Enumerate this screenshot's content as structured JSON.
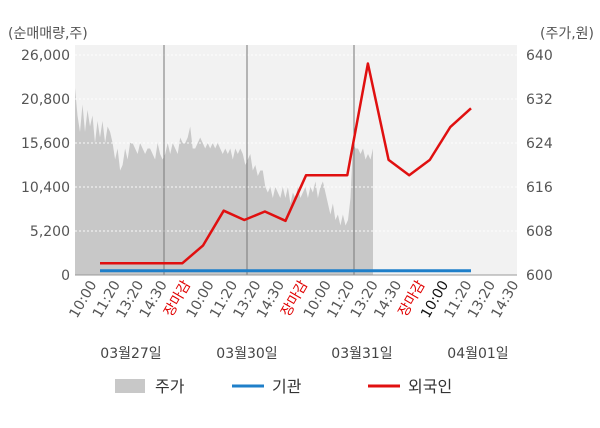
{
  "chart_data": {
    "type": "line",
    "left_axis_unit": "(순매매량,주)",
    "right_axis_unit": "(주가,원)",
    "left_ticks": [
      "0",
      "5,200",
      "10,400",
      "15,600",
      "20,800",
      "26,000"
    ],
    "right_ticks": [
      "600",
      "608",
      "616",
      "624",
      "632",
      "640"
    ],
    "ylim_left": [
      0,
      26000
    ],
    "ylim_right": [
      600,
      640
    ],
    "time_labels": [
      {
        "text": "10:00",
        "color": "#555555"
      },
      {
        "text": "11:20",
        "color": "#555555"
      },
      {
        "text": "13:20",
        "color": "#555555"
      },
      {
        "text": "14:30",
        "color": "#555555"
      },
      {
        "text": "장마감",
        "color": "#e00000"
      },
      {
        "text": "10:00",
        "color": "#555555"
      },
      {
        "text": "11:20",
        "color": "#555555"
      },
      {
        "text": "13:20",
        "color": "#555555"
      },
      {
        "text": "14:30",
        "color": "#555555"
      },
      {
        "text": "장마감",
        "color": "#e00000"
      },
      {
        "text": "10:00",
        "color": "#555555"
      },
      {
        "text": "11:20",
        "color": "#555555"
      },
      {
        "text": "13:20",
        "color": "#555555"
      },
      {
        "text": "14:30",
        "color": "#555555"
      },
      {
        "text": "장마감",
        "color": "#e00000"
      },
      {
        "text": "10:00",
        "color": "#111111"
      },
      {
        "text": "11:20",
        "color": "#555555"
      },
      {
        "text": "13:20",
        "color": "#555555"
      },
      {
        "text": "14:30",
        "color": "#555555"
      }
    ],
    "dates": [
      "03월27일",
      "03월30일",
      "03월31일",
      "04월01일"
    ],
    "legend": [
      {
        "name": "주가",
        "color": "#c8c8c8",
        "kind": "area"
      },
      {
        "name": "기관",
        "color": "#1f7fc9",
        "kind": "line"
      },
      {
        "name": "외국인",
        "color": "#e01010",
        "kind": "line"
      }
    ],
    "price_area": {
      "color": "#c8c8c8",
      "values": [
        634,
        629,
        626,
        631,
        626,
        630,
        627,
        629,
        624,
        628,
        625,
        628,
        624,
        627,
        626,
        624,
        621,
        623,
        619,
        620,
        623,
        621,
        624,
        624,
        623,
        622,
        624,
        623,
        622,
        623,
        623,
        622,
        621,
        624,
        622,
        621,
        622,
        624,
        622,
        624,
        623,
        622,
        625,
        624,
        624,
        625,
        627,
        623,
        623,
        624,
        625,
        624,
        623,
        624,
        623,
        624,
        623,
        624,
        623,
        622,
        623,
        622,
        623,
        621,
        623,
        622,
        623,
        622,
        620,
        621,
        622,
        619,
        620,
        618,
        619,
        619,
        616,
        615,
        616,
        614,
        616,
        615,
        614,
        616,
        614,
        616,
        613,
        615,
        614,
        616,
        614,
        615,
        616,
        614,
        616,
        615,
        617,
        614,
        616,
        617,
        615,
        613,
        611,
        613,
        610,
        611,
        609,
        611,
        609,
        610,
        614,
        624,
        623,
        623,
        622,
        623,
        621,
        622,
        621,
        623
      ]
    },
    "institution": {
      "color": "#1f7fc9",
      "values": [
        500,
        500,
        500,
        500,
        500,
        500,
        500,
        500,
        500,
        500,
        500,
        500,
        500,
        500,
        500,
        500,
        500,
        500,
        500,
        500,
        500,
        500,
        500
      ]
    },
    "foreign": {
      "color": "#e01010",
      "values": [
        1400,
        1400,
        1400,
        1400,
        1400,
        3500,
        7600,
        6500,
        7500,
        6400,
        11800,
        11800,
        11800,
        25000,
        13600,
        11800,
        13600,
        17500,
        19700
      ]
    }
  }
}
